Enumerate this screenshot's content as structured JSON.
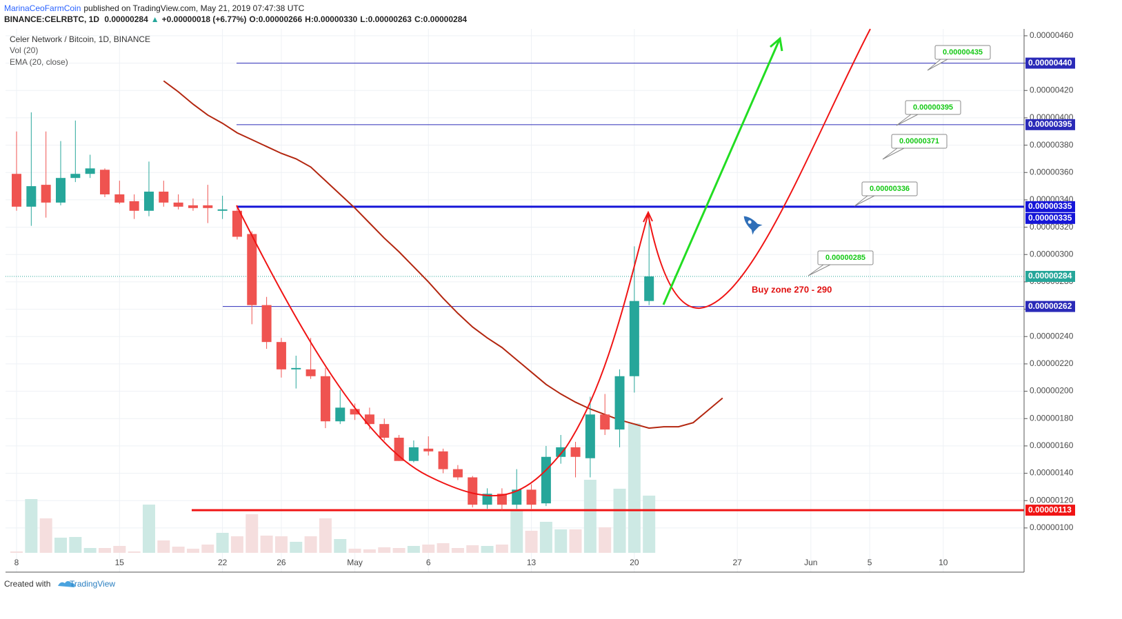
{
  "header": {
    "author": "MarinaCeoFarmCoin",
    "published": "published on TradingView.com, May 21, 2019 07:47:38 UTC",
    "symbol": "BINANCE:CELRBTC, 1D",
    "last": "0.00000284",
    "change": "+0.00000018 (+6.77%)",
    "o_label": "O:",
    "o": "0.00000266",
    "h_label": "H:",
    "h": "0.00000330",
    "l_label": "L:",
    "l": "0.00000263",
    "c_label": "C:",
    "c": "0.00000284"
  },
  "chart_data": {
    "type": "candlestick",
    "title": "Celer Network / Bitcoin, 1D, BINANCE",
    "categories": [
      null,
      "8",
      null,
      null,
      null,
      null,
      null,
      null,
      "15",
      null,
      null,
      null,
      null,
      null,
      null,
      "22",
      null,
      null,
      null,
      "26",
      null,
      null,
      null,
      null,
      "May",
      null,
      null,
      null,
      null,
      "6",
      null,
      null,
      null,
      null,
      null,
      null,
      "13",
      null,
      null,
      null,
      null,
      null,
      null,
      "20",
      null,
      null,
      null,
      null,
      null,
      null,
      "27",
      null,
      null,
      null,
      null,
      "Jun",
      null,
      null,
      null,
      "5",
      null,
      null,
      null,
      null,
      "10",
      null,
      null,
      null,
      null,
      null
    ],
    "open": [
      null,
      3.59e-06,
      3.35e-06,
      3.51e-06,
      3.38e-06,
      3.56e-06,
      3.59e-06,
      3.62e-06,
      3.44e-06,
      3.39e-06,
      3.32e-06,
      3.46e-06,
      3.38e-06,
      3.36e-06,
      3.36e-06,
      3.32e-06,
      3.32e-06,
      3.15e-06,
      2.63e-06,
      2.36e-06,
      2.16e-06,
      2.16e-06,
      2.11e-06,
      1.78e-06,
      1.87e-06,
      1.83e-06,
      1.76e-06,
      1.66e-06,
      1.49e-06,
      1.58e-06,
      1.56e-06,
      1.43e-06,
      1.37e-06,
      1.17e-06,
      1.25e-06,
      1.17e-06,
      1.28e-06,
      1.18e-06,
      1.52e-06,
      1.59e-06,
      1.51e-06,
      1.83e-06,
      1.72e-06,
      2.11e-06,
      2.66e-06,
      null,
      null,
      null,
      null,
      null,
      null,
      null,
      null,
      null,
      null,
      null,
      null,
      null,
      null,
      null,
      null,
      null,
      null,
      null,
      null,
      null,
      null,
      null,
      null,
      null
    ],
    "high": [
      null,
      3.9e-06,
      4.04e-06,
      3.9e-06,
      3.83e-06,
      3.98e-06,
      3.73e-06,
      3.63e-06,
      3.54e-06,
      3.44e-06,
      3.68e-06,
      3.54e-06,
      3.44e-06,
      3.41e-06,
      3.51e-06,
      3.43e-06,
      3.36e-06,
      3.17e-06,
      2.69e-06,
      2.39e-06,
      2.26e-06,
      2.39e-06,
      2.17e-06,
      2.01e-06,
      1.91e-06,
      1.88e-06,
      1.8e-06,
      1.68e-06,
      1.64e-06,
      1.67e-06,
      1.58e-06,
      1.46e-06,
      1.38e-06,
      1.29e-06,
      1.29e-06,
      1.43e-06,
      1.32e-06,
      1.6e-06,
      1.68e-06,
      1.63e-06,
      1.96e-06,
      1.98e-06,
      2.16e-06,
      3.06e-06,
      3.3e-06,
      null,
      null,
      null,
      null,
      null,
      null,
      null,
      null,
      null,
      null,
      null,
      null,
      null,
      null,
      null,
      null,
      null,
      null,
      null,
      null,
      null,
      null,
      null,
      null,
      null
    ],
    "low": [
      null,
      3.32e-06,
      3.21e-06,
      3.27e-06,
      3.36e-06,
      3.53e-06,
      3.56e-06,
      3.42e-06,
      3.37e-06,
      3.26e-06,
      3.28e-06,
      3.35e-06,
      3.33e-06,
      3.32e-06,
      3.23e-06,
      3.26e-06,
      3.11e-06,
      2.49e-06,
      2.31e-06,
      2.1e-06,
      2.02e-06,
      2.09e-06,
      1.73e-06,
      1.76e-06,
      1.79e-06,
      1.72e-06,
      1.64e-06,
      1.49e-06,
      1.48e-06,
      1.53e-06,
      1.4e-06,
      1.35e-06,
      1.15e-06,
      1.14e-06,
      1.13e-06,
      1.14e-06,
      1.14e-06,
      1.16e-06,
      1.47e-06,
      1.37e-06,
      1.37e-06,
      1.68e-06,
      1.59e-06,
      1.99e-06,
      2.63e-06,
      null,
      null,
      null,
      null,
      null,
      null,
      null,
      null,
      null,
      null,
      null,
      null,
      null,
      null,
      null,
      null,
      null,
      null,
      null,
      null,
      null,
      null,
      null,
      null,
      null
    ],
    "close": [
      null,
      3.35e-06,
      3.5e-06,
      3.38e-06,
      3.56e-06,
      3.59e-06,
      3.63e-06,
      3.44e-06,
      3.38e-06,
      3.32e-06,
      3.46e-06,
      3.38e-06,
      3.35e-06,
      3.34e-06,
      3.34e-06,
      3.33e-06,
      3.13e-06,
      2.63e-06,
      2.36e-06,
      2.16e-06,
      2.17e-06,
      2.11e-06,
      1.78e-06,
      1.88e-06,
      1.83e-06,
      1.76e-06,
      1.66e-06,
      1.49e-06,
      1.59e-06,
      1.56e-06,
      1.43e-06,
      1.37e-06,
      1.17e-06,
      1.25e-06,
      1.17e-06,
      1.28e-06,
      1.17e-06,
      1.52e-06,
      1.59e-06,
      1.52e-06,
      1.83e-06,
      1.72e-06,
      2.11e-06,
      2.66e-06,
      2.84e-06,
      null,
      null,
      null,
      null,
      null,
      null,
      null,
      null,
      null,
      null,
      null,
      null,
      null,
      null,
      null,
      null,
      null,
      null,
      null,
      null,
      null,
      null,
      null,
      null,
      null
    ],
    "up_color": "#26a69a",
    "down_color": "#ef5350",
    "volume": {
      "name": "Vol (20)",
      "up_color": "#cde9e4",
      "down_color": "#f5dede",
      "values": [
        null,
        2,
        78,
        50,
        22,
        23,
        7,
        7,
        10,
        2,
        70,
        18,
        9,
        6,
        12,
        29,
        24,
        56,
        25,
        24,
        16,
        24,
        50,
        20,
        6,
        5,
        8,
        7,
        10,
        12,
        14,
        7,
        11,
        10,
        12,
        62,
        32,
        45,
        34,
        34,
        106,
        37,
        93,
        188,
        83,
        null,
        null,
        null,
        null,
        null,
        null,
        null,
        null,
        null,
        null,
        null,
        null,
        null,
        null,
        null,
        null,
        null,
        null,
        null,
        null,
        null,
        null,
        null,
        null,
        null
      ]
    },
    "ema": {
      "name": "EMA (20, close)",
      "color": "#b3260f",
      "values": [
        null,
        null,
        null,
        null,
        null,
        null,
        null,
        null,
        null,
        null,
        null,
        4.27e-06,
        4.19e-06,
        4.1e-06,
        4.02e-06,
        3.96e-06,
        3.89e-06,
        3.84e-06,
        3.79e-06,
        3.74e-06,
        3.7e-06,
        3.64e-06,
        3.54e-06,
        3.44e-06,
        3.34e-06,
        3.23e-06,
        3.12e-06,
        3.02e-06,
        2.91e-06,
        2.8e-06,
        2.68e-06,
        2.57e-06,
        2.47e-06,
        2.39e-06,
        2.32e-06,
        2.23e-06,
        2.14e-06,
        2.05e-06,
        1.98e-06,
        1.92e-06,
        1.87e-06,
        1.83e-06,
        1.79e-06,
        1.76e-06,
        1.73e-06,
        1.74e-06,
        1.74e-06,
        1.77e-06,
        1.86e-06,
        1.95e-06,
        null,
        null,
        null,
        null,
        null,
        null,
        null,
        null,
        null,
        null,
        null,
        null,
        null,
        null,
        null,
        null,
        null,
        null,
        null,
        null
      ]
    },
    "ylim": [
      8.18e-07,
      4.65e-06
    ],
    "yticks": [
      {
        "value": 4.6e-06,
        "label": "0.00000460"
      },
      {
        "value": 4.4e-06,
        "label": "0.00000440"
      },
      {
        "value": 4.2e-06,
        "label": "0.00000420"
      },
      {
        "value": 4e-06,
        "label": "0.00000400"
      },
      {
        "value": 3.8e-06,
        "label": "0.00000380"
      },
      {
        "value": 3.6e-06,
        "label": "0.00000360"
      },
      {
        "value": 3.4e-06,
        "label": "0.00000340"
      },
      {
        "value": 3.2e-06,
        "label": "0.00000320"
      },
      {
        "value": 3e-06,
        "label": "0.00000300"
      },
      {
        "value": 2.8e-06,
        "label": "0.00000280"
      },
      {
        "value": 2.6e-06,
        "label": "0.00000260"
      },
      {
        "value": 2.4e-06,
        "label": "0.00000240"
      },
      {
        "value": 2.2e-06,
        "label": "0.00000220"
      },
      {
        "value": 2e-06,
        "label": "0.00000200"
      },
      {
        "value": 1.8e-06,
        "label": "0.00000180"
      },
      {
        "value": 1.6e-06,
        "label": "0.00000160"
      },
      {
        "value": 1.4e-06,
        "label": "0.00000140"
      },
      {
        "value": 1.2e-06,
        "label": "0.00000120"
      },
      {
        "value": 1e-06,
        "label": "0.00000100"
      }
    ],
    "grid": true,
    "levels": [
      {
        "value": 4.4e-06,
        "label": "0.00000440",
        "color": "#2a2ab8",
        "line": "thin"
      },
      {
        "value": 3.95e-06,
        "label": "0.00000395",
        "color": "#2a2ab8",
        "line": "thin"
      },
      {
        "value": 3.35e-06,
        "label": "0.00000335",
        "color": "#1515d8",
        "line": "thick"
      },
      {
        "value": 3.35e-06,
        "label": "0.00000335",
        "color": "#1515d8",
        "line": "thin"
      },
      {
        "value": 2.84e-06,
        "label": "0.00000284",
        "color": "#26a69a",
        "line": "dotted"
      },
      {
        "value": 2.62e-06,
        "label": "0.00000262",
        "color": "#2a2ab8",
        "line": "thin"
      },
      {
        "value": 1.13e-06,
        "label": "0.00000113",
        "color": "#f01414",
        "line": "thick"
      }
    ],
    "annotations": [
      "0.00000435",
      "0.00000395",
      "0.00000371",
      "0.00000336",
      "0.00000285"
    ],
    "note": "Buy zone 270 - 290"
  },
  "footer": {
    "created": "Created with",
    "brand": "TradingView"
  }
}
